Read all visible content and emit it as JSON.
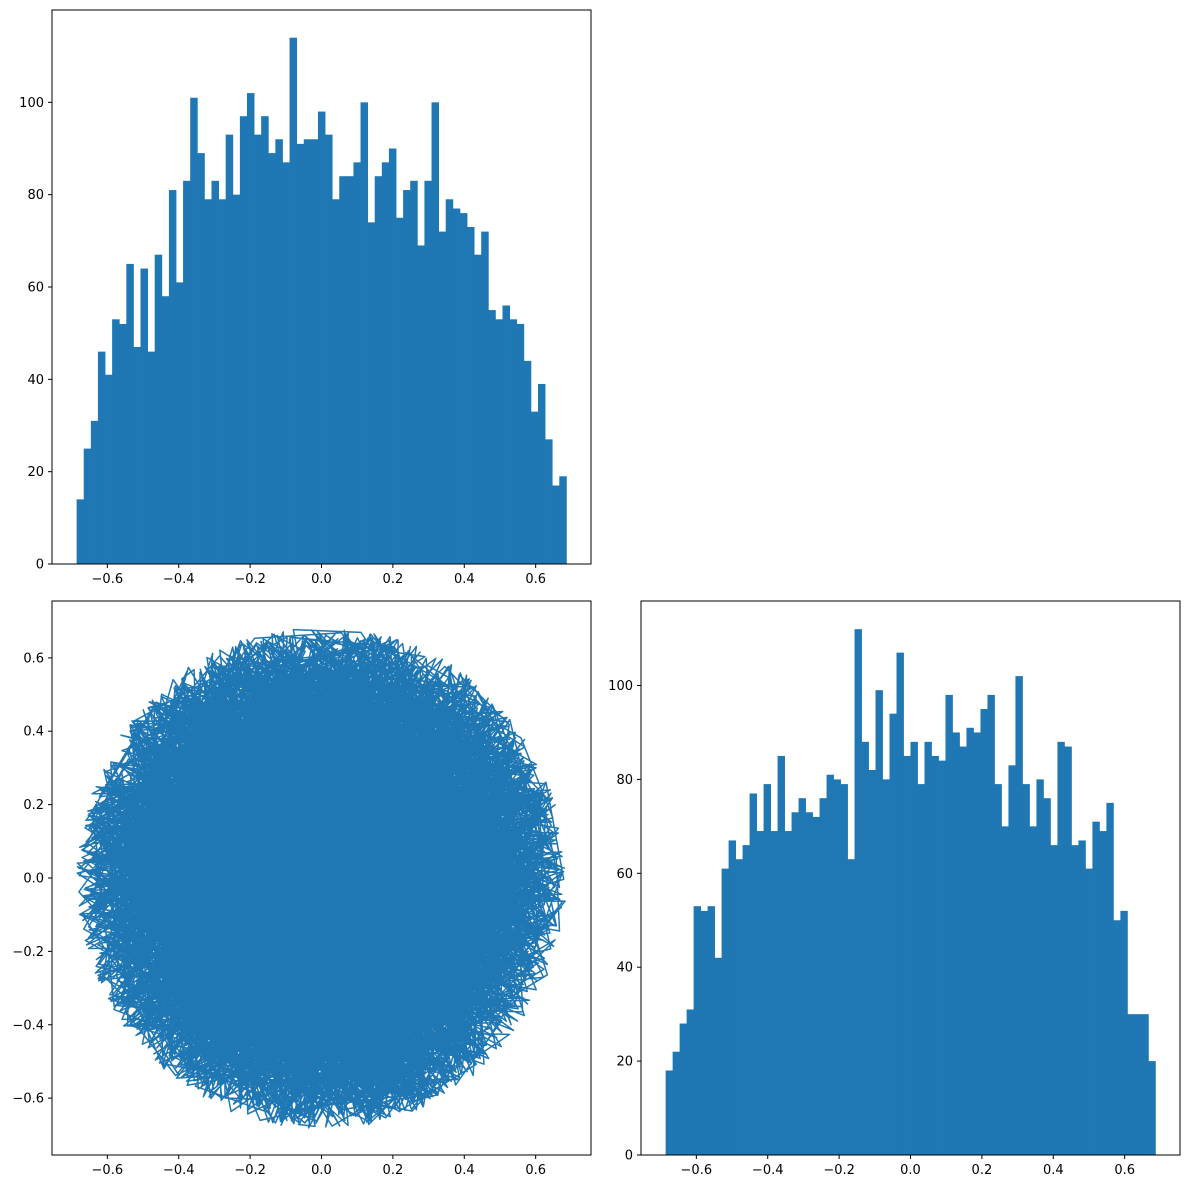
{
  "chart_data": [
    {
      "type": "bar",
      "subtype": "histogram",
      "title": "",
      "xlabel": "",
      "ylabel": "",
      "color": "#1f77b4",
      "xlim": [
        -0.755,
        0.755
      ],
      "ylim": [
        0,
        120
      ],
      "xticks": [
        -0.6,
        -0.4,
        -0.2,
        0.0,
        0.2,
        0.4,
        0.6
      ],
      "xtick_labels": [
        "−0.6",
        "−0.4",
        "−0.2",
        "0.0",
        "0.2",
        "0.4",
        "0.6"
      ],
      "yticks": [
        0,
        20,
        40,
        60,
        80,
        100
      ],
      "ytick_labels": [
        "0",
        "20",
        "40",
        "60",
        "80",
        "100"
      ],
      "bin_range": [
        -0.686,
        0.686
      ],
      "values": [
        14,
        25,
        31,
        46,
        41,
        53,
        52,
        65,
        47,
        64,
        46,
        67,
        58,
        81,
        61,
        83,
        101,
        89,
        79,
        83,
        79,
        93,
        80,
        97,
        102,
        93,
        97,
        89,
        92,
        87,
        114,
        91,
        92,
        92,
        98,
        93,
        79,
        84,
        84,
        87,
        100,
        74,
        84,
        87,
        90,
        75,
        81,
        83,
        69,
        83,
        100,
        72,
        79,
        77,
        76,
        73,
        67,
        72,
        55,
        53,
        56,
        53,
        52,
        44,
        33,
        39,
        27,
        17,
        19
      ]
    },
    {
      "type": "line",
      "title": "",
      "xlabel": "",
      "ylabel": "",
      "color": "#1f77b4",
      "xlim": [
        -0.755,
        0.755
      ],
      "ylim": [
        -0.755,
        0.755
      ],
      "xticks": [
        -0.6,
        -0.4,
        -0.2,
        0.0,
        0.2,
        0.4,
        0.6
      ],
      "xtick_labels": [
        "−0.6",
        "−0.4",
        "−0.2",
        "0.0",
        "0.2",
        "0.4",
        "0.6"
      ],
      "yticks": [
        -0.6,
        -0.4,
        -0.2,
        0.0,
        0.2,
        0.4,
        0.6
      ],
      "ytick_labels": [
        "−0.6",
        "−0.4",
        "−0.2",
        "0.0",
        "0.2",
        "0.4",
        "0.6"
      ],
      "description_radius": 0.686,
      "n_points": 5000
    },
    {
      "type": "bar",
      "subtype": "histogram",
      "title": "",
      "xlabel": "",
      "ylabel": "",
      "color": "#1f77b4",
      "xlim": [
        -0.755,
        0.755
      ],
      "ylim": [
        0,
        118
      ],
      "xticks": [
        -0.6,
        -0.4,
        -0.2,
        0.0,
        0.2,
        0.4,
        0.6
      ],
      "xtick_labels": [
        "−0.6",
        "−0.4",
        "−0.2",
        "0.0",
        "0.2",
        "0.4",
        "0.6"
      ],
      "yticks": [
        0,
        20,
        40,
        60,
        80,
        100
      ],
      "ytick_labels": [
        "0",
        "20",
        "40",
        "60",
        "80",
        "100"
      ],
      "bin_range": [
        -0.686,
        0.686
      ],
      "values": [
        18,
        22,
        28,
        31,
        53,
        52,
        53,
        42,
        61,
        67,
        63,
        66,
        77,
        69,
        79,
        69,
        85,
        69,
        73,
        76,
        73,
        72,
        76,
        81,
        80,
        79,
        63,
        112,
        88,
        82,
        99,
        80,
        94,
        107,
        85,
        88,
        79,
        88,
        85,
        84,
        98,
        90,
        87,
        91,
        90,
        95,
        98,
        79,
        70,
        83,
        102,
        79,
        70,
        80,
        76,
        66,
        88,
        87,
        66,
        67,
        61,
        71,
        69,
        75,
        50,
        52,
        30,
        30,
        30,
        20
      ]
    }
  ]
}
